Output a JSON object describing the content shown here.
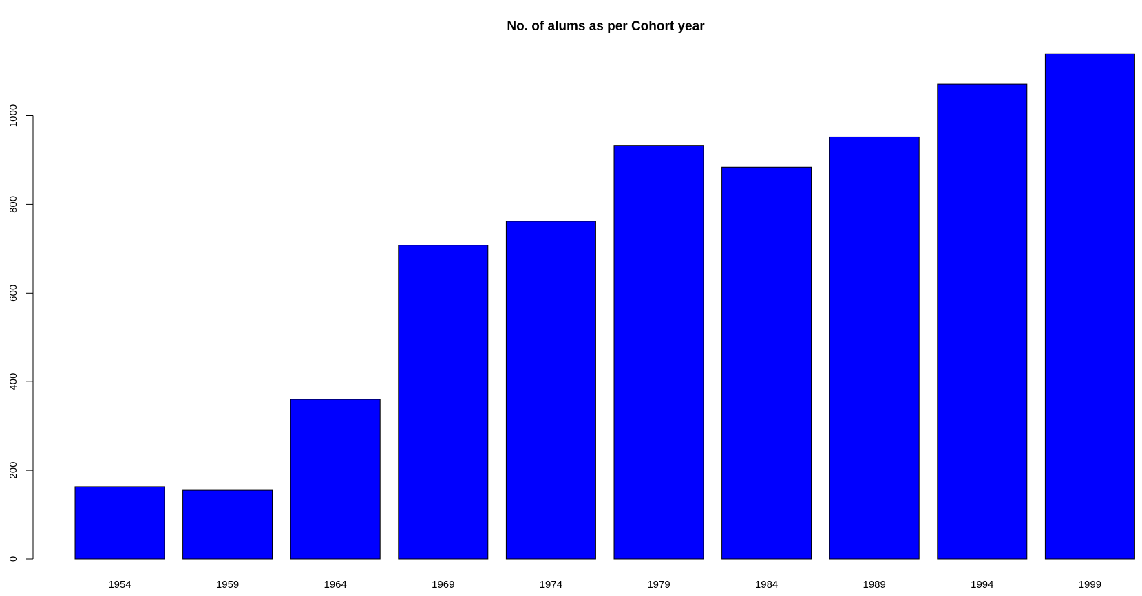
{
  "chart_data": {
    "type": "bar",
    "title": "No. of alums as per Cohort year",
    "xlabel": "",
    "ylabel": "",
    "categories": [
      "1954",
      "1959",
      "1964",
      "1969",
      "1974",
      "1979",
      "1984",
      "1989",
      "1994",
      "1999"
    ],
    "values": [
      163,
      155,
      360,
      708,
      762,
      933,
      884,
      952,
      1072,
      1140
    ],
    "ylim": [
      0,
      1160
    ],
    "yticks": [
      0,
      200,
      400,
      600,
      800,
      1000
    ],
    "ytick_labels": [
      "0",
      "200",
      "400",
      "600",
      "800",
      "1000"
    ],
    "grid": false,
    "legend": "none",
    "bar_color": "#0000ff",
    "bar_edge_color": "#000000"
  }
}
